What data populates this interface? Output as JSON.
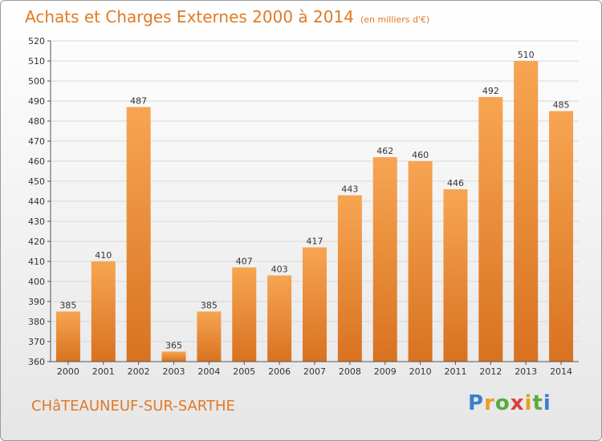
{
  "header": {
    "title": "Achats et Charges Externes 2000 à 2014",
    "unit": "(en milliers d'€)"
  },
  "footer": {
    "city": "CHâTEAUNEUF-SUR-SARTHE",
    "logo_text": "Proxiti"
  },
  "colors": {
    "accent": "#e07a26",
    "bar_light": "#f7a552",
    "bar_dark": "#d87220",
    "grid": "#d8d8d8"
  },
  "chart_data": {
    "type": "bar",
    "title": "Achats et Charges Externes 2000 à 2014",
    "xlabel": "",
    "ylabel": "",
    "categories": [
      "2000",
      "2001",
      "2002",
      "2003",
      "2004",
      "2005",
      "2006",
      "2007",
      "2008",
      "2009",
      "2010",
      "2011",
      "2012",
      "2013",
      "2014"
    ],
    "values": [
      385,
      410,
      487,
      365,
      385,
      407,
      403,
      417,
      443,
      462,
      460,
      446,
      492,
      510,
      485
    ],
    "ylim": [
      360,
      520
    ],
    "yticks": [
      360,
      370,
      380,
      390,
      400,
      410,
      420,
      430,
      440,
      450,
      460,
      470,
      480,
      490,
      500,
      510,
      520
    ],
    "grid": true,
    "data_labels": true
  }
}
